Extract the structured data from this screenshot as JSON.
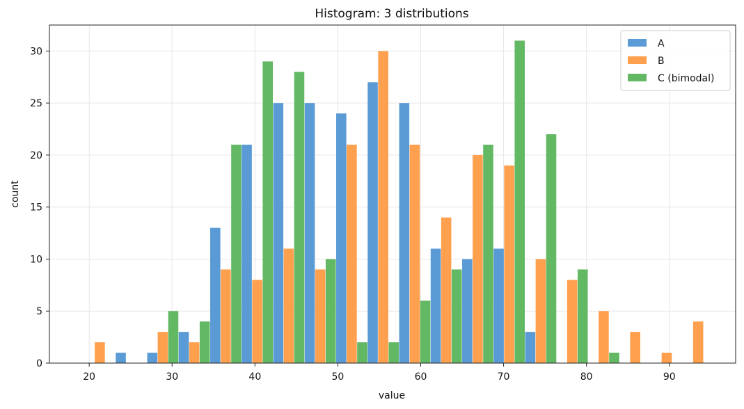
{
  "chart_data": {
    "type": "bar",
    "title": "Histogram: 3 distributions",
    "xlabel": "value",
    "ylabel": "count",
    "xlim": [
      15.2,
      98.0
    ],
    "ylim": [
      0,
      32.5
    ],
    "xticks": [
      20,
      30,
      40,
      50,
      60,
      70,
      80,
      90
    ],
    "yticks": [
      0,
      5,
      10,
      15,
      20,
      25,
      30
    ],
    "grid": true,
    "legend_position": "top-right",
    "bins": [
      [
        19.4,
        23.2
      ],
      [
        23.2,
        27.0
      ],
      [
        27.0,
        30.8
      ],
      [
        30.8,
        34.6
      ],
      [
        34.6,
        38.4
      ],
      [
        38.4,
        42.2
      ],
      [
        42.2,
        46.0
      ],
      [
        46.0,
        49.8
      ],
      [
        49.8,
        53.6
      ],
      [
        53.6,
        57.4
      ],
      [
        57.4,
        61.2
      ],
      [
        61.2,
        65.0
      ],
      [
        65.0,
        68.8
      ],
      [
        68.8,
        72.6
      ],
      [
        72.6,
        76.4
      ],
      [
        76.4,
        80.2
      ],
      [
        80.2,
        84.0
      ],
      [
        84.0,
        87.8
      ],
      [
        87.8,
        91.6
      ],
      [
        91.6,
        95.4
      ]
    ],
    "series": [
      {
        "name": "A",
        "color": "#5b9bd5",
        "values": [
          0,
          1,
          1,
          3,
          13,
          21,
          25,
          25,
          24,
          27,
          25,
          11,
          10,
          11,
          3,
          0,
          0,
          0,
          0,
          0
        ]
      },
      {
        "name": "B",
        "color": "#ffa04f",
        "values": [
          2,
          0,
          3,
          2,
          9,
          8,
          11,
          9,
          21,
          30,
          21,
          14,
          20,
          19,
          10,
          8,
          5,
          3,
          1,
          4
        ]
      },
      {
        "name": "C (bimodal)",
        "color": "#63b864",
        "values": [
          0,
          0,
          5,
          4,
          21,
          29,
          28,
          10,
          2,
          2,
          6,
          9,
          21,
          31,
          22,
          9,
          1,
          0,
          0,
          0
        ]
      }
    ]
  }
}
